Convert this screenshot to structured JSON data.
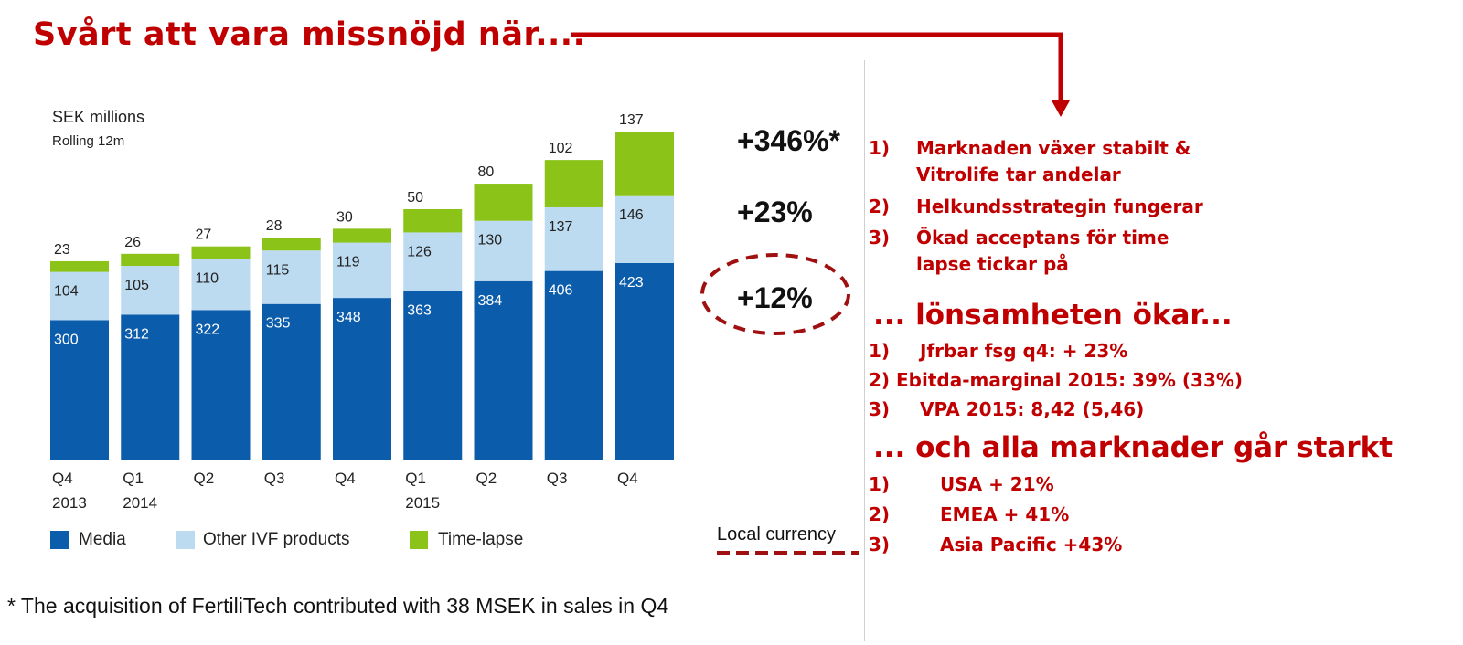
{
  "headline": "Svårt att vara missnöjd när....",
  "chart_data": {
    "type": "bar",
    "stacked": true,
    "unit_label": "SEK millions",
    "period_label": "Rolling 12m",
    "categories": [
      {
        "q": "Q4",
        "year": "2013"
      },
      {
        "q": "Q1",
        "year": "2014"
      },
      {
        "q": "Q2",
        "year": ""
      },
      {
        "q": "Q3",
        "year": ""
      },
      {
        "q": "Q4",
        "year": ""
      },
      {
        "q": "Q1",
        "year": "2015"
      },
      {
        "q": "Q2",
        "year": ""
      },
      {
        "q": "Q3",
        "year": ""
      },
      {
        "q": "Q4",
        "year": ""
      }
    ],
    "series": [
      {
        "name": "Media",
        "color": "#0b5cab",
        "values": [
          300,
          312,
          322,
          335,
          348,
          363,
          384,
          406,
          423
        ]
      },
      {
        "name": "Other IVF products",
        "color": "#bddbf0",
        "values": [
          104,
          105,
          110,
          115,
          119,
          126,
          130,
          137,
          146
        ]
      },
      {
        "name": "Time-lapse",
        "color": "#8cc318",
        "values": [
          23,
          26,
          27,
          28,
          30,
          50,
          80,
          102,
          137
        ]
      }
    ],
    "ylim": [
      0,
      720
    ],
    "grid": false,
    "legend": "bottom"
  },
  "growth": {
    "time_lapse": "+346%*",
    "other_ivf": "+23%",
    "media": "+12%",
    "local_currency": "Local currency"
  },
  "footnote": "* The acquisition of FertiliTech contributed with 38 MSEK in sales in Q4",
  "right_panel": {
    "points1": [
      {
        "num": "1)",
        "lines": [
          "Marknaden växer stabilt &",
          "Vitrolife tar andelar"
        ]
      },
      {
        "num": "2)",
        "lines": [
          "Helkundsstrategin fungerar"
        ]
      },
      {
        "num": "3)",
        "lines": [
          "Ökad acceptans för time",
          "lapse tickar på"
        ]
      }
    ],
    "heading2": "... lönsamheten ökar...",
    "points2": [
      {
        "num": "1)",
        "text": "Jfrbar fsg q4: + 23%"
      },
      {
        "num": "2)",
        "text": "Ebitda-marginal 2015: 39% (33%)"
      },
      {
        "num": "3)",
        "text": "VPA 2015: 8,42 (5,46)"
      }
    ],
    "heading3": "... och alla marknader går starkt",
    "points3": [
      {
        "num": "1)",
        "text": "USA + 21%"
      },
      {
        "num": "2)",
        "text": "EMEA + 41%"
      },
      {
        "num": "3)",
        "text": "Asia Pacific +43%"
      }
    ]
  }
}
